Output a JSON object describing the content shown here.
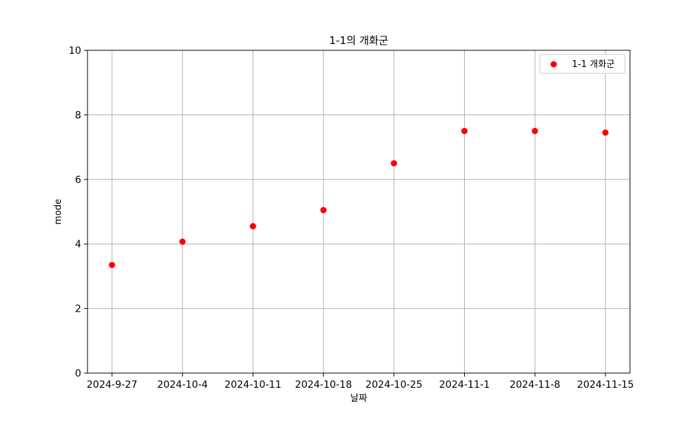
{
  "chart_data": {
    "type": "scatter",
    "title": "1-1의 개화군",
    "xlabel": "날짜",
    "ylabel": "mode",
    "x": [
      "2024-9-27",
      "2024-10-4",
      "2024-10-11",
      "2024-10-18",
      "2024-10-25",
      "2024-11-1",
      "2024-11-8",
      "2024-11-15"
    ],
    "series": [
      {
        "name": "1-1 개화군",
        "color": "#ff0000",
        "values": [
          3.35,
          4.07,
          4.55,
          5.05,
          6.5,
          7.5,
          7.5,
          7.45
        ]
      }
    ],
    "ylim": [
      0,
      10
    ],
    "yticks": [
      "0",
      "2",
      "4",
      "6",
      "8",
      "10"
    ],
    "grid": true,
    "legend_position": "top-right"
  }
}
